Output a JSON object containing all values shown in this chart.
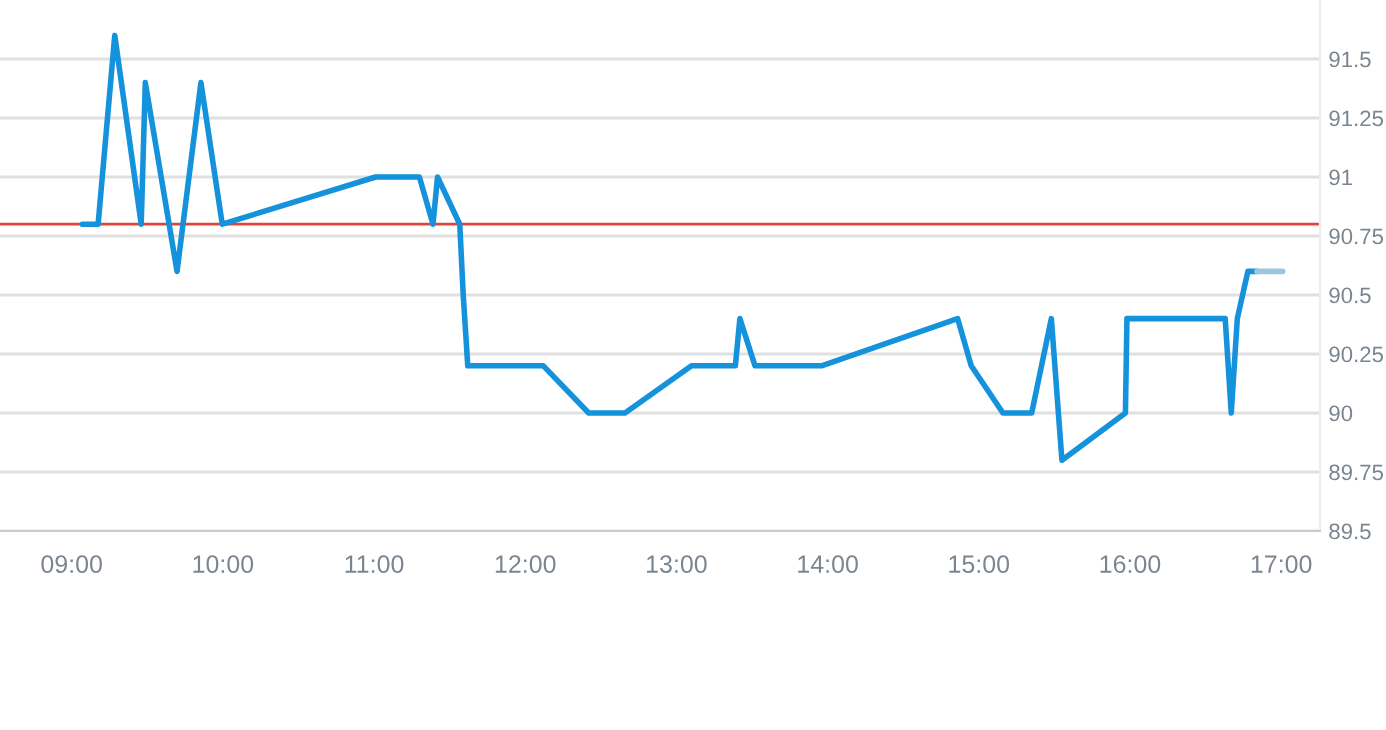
{
  "chart_data": {
    "type": "line",
    "series": [
      {
        "color": "#1592dc",
        "x": [
          9.07,
          9.175,
          9.285,
          9.46,
          9.487,
          9.697,
          9.855,
          9.996,
          11.01,
          11.3,
          11.39,
          11.42,
          11.567,
          11.59,
          11.62,
          12.12,
          12.42,
          12.66,
          13.1,
          13.39,
          13.42,
          13.52,
          13.96,
          14.86,
          14.95,
          15.16,
          15.35,
          15.48,
          15.55,
          15.97,
          15.98,
          16.63,
          16.67,
          16.71,
          16.78,
          16.84
        ],
        "values": [
          90.8,
          90.8,
          91.6,
          90.8,
          91.4,
          90.6,
          91.4,
          90.8,
          91.0,
          91.0,
          90.8,
          91.0,
          90.8,
          90.5,
          90.2,
          90.2,
          90.0,
          90.0,
          90.2,
          90.2,
          90.4,
          90.2,
          90.2,
          90.4,
          90.2,
          90.0,
          90.0,
          90.4,
          89.8,
          90.0,
          90.4,
          90.4,
          90.0,
          90.4,
          90.6,
          90.6
        ]
      },
      {
        "color": "#9cc6dc",
        "x": [
          16.84,
          17.01
        ],
        "values": [
          90.6,
          90.6
        ]
      }
    ],
    "xlim": [
      8.526,
      17.257
    ],
    "xticks": [
      {
        "value": 9,
        "label": "09:00"
      },
      {
        "value": 10,
        "label": "10:00"
      },
      {
        "value": 11,
        "label": "11:00"
      },
      {
        "value": 12,
        "label": "12:00"
      },
      {
        "value": 13,
        "label": "13:00"
      },
      {
        "value": 14,
        "label": "14:00"
      },
      {
        "value": 15,
        "label": "15:00"
      },
      {
        "value": 16,
        "label": "16:00"
      },
      {
        "value": 17,
        "label": "17:00"
      }
    ],
    "ylim": [
      89.5,
      91.75
    ],
    "yticks": [
      89.5,
      89.75,
      90,
      90.25,
      90.5,
      90.75,
      91,
      91.25,
      91.5
    ],
    "ref_lines": [
      {
        "axis": "y",
        "value": 90.8,
        "color": "#e0443a"
      }
    ],
    "grid": "y",
    "marker": "none",
    "line_style": "solid",
    "legend": false
  }
}
